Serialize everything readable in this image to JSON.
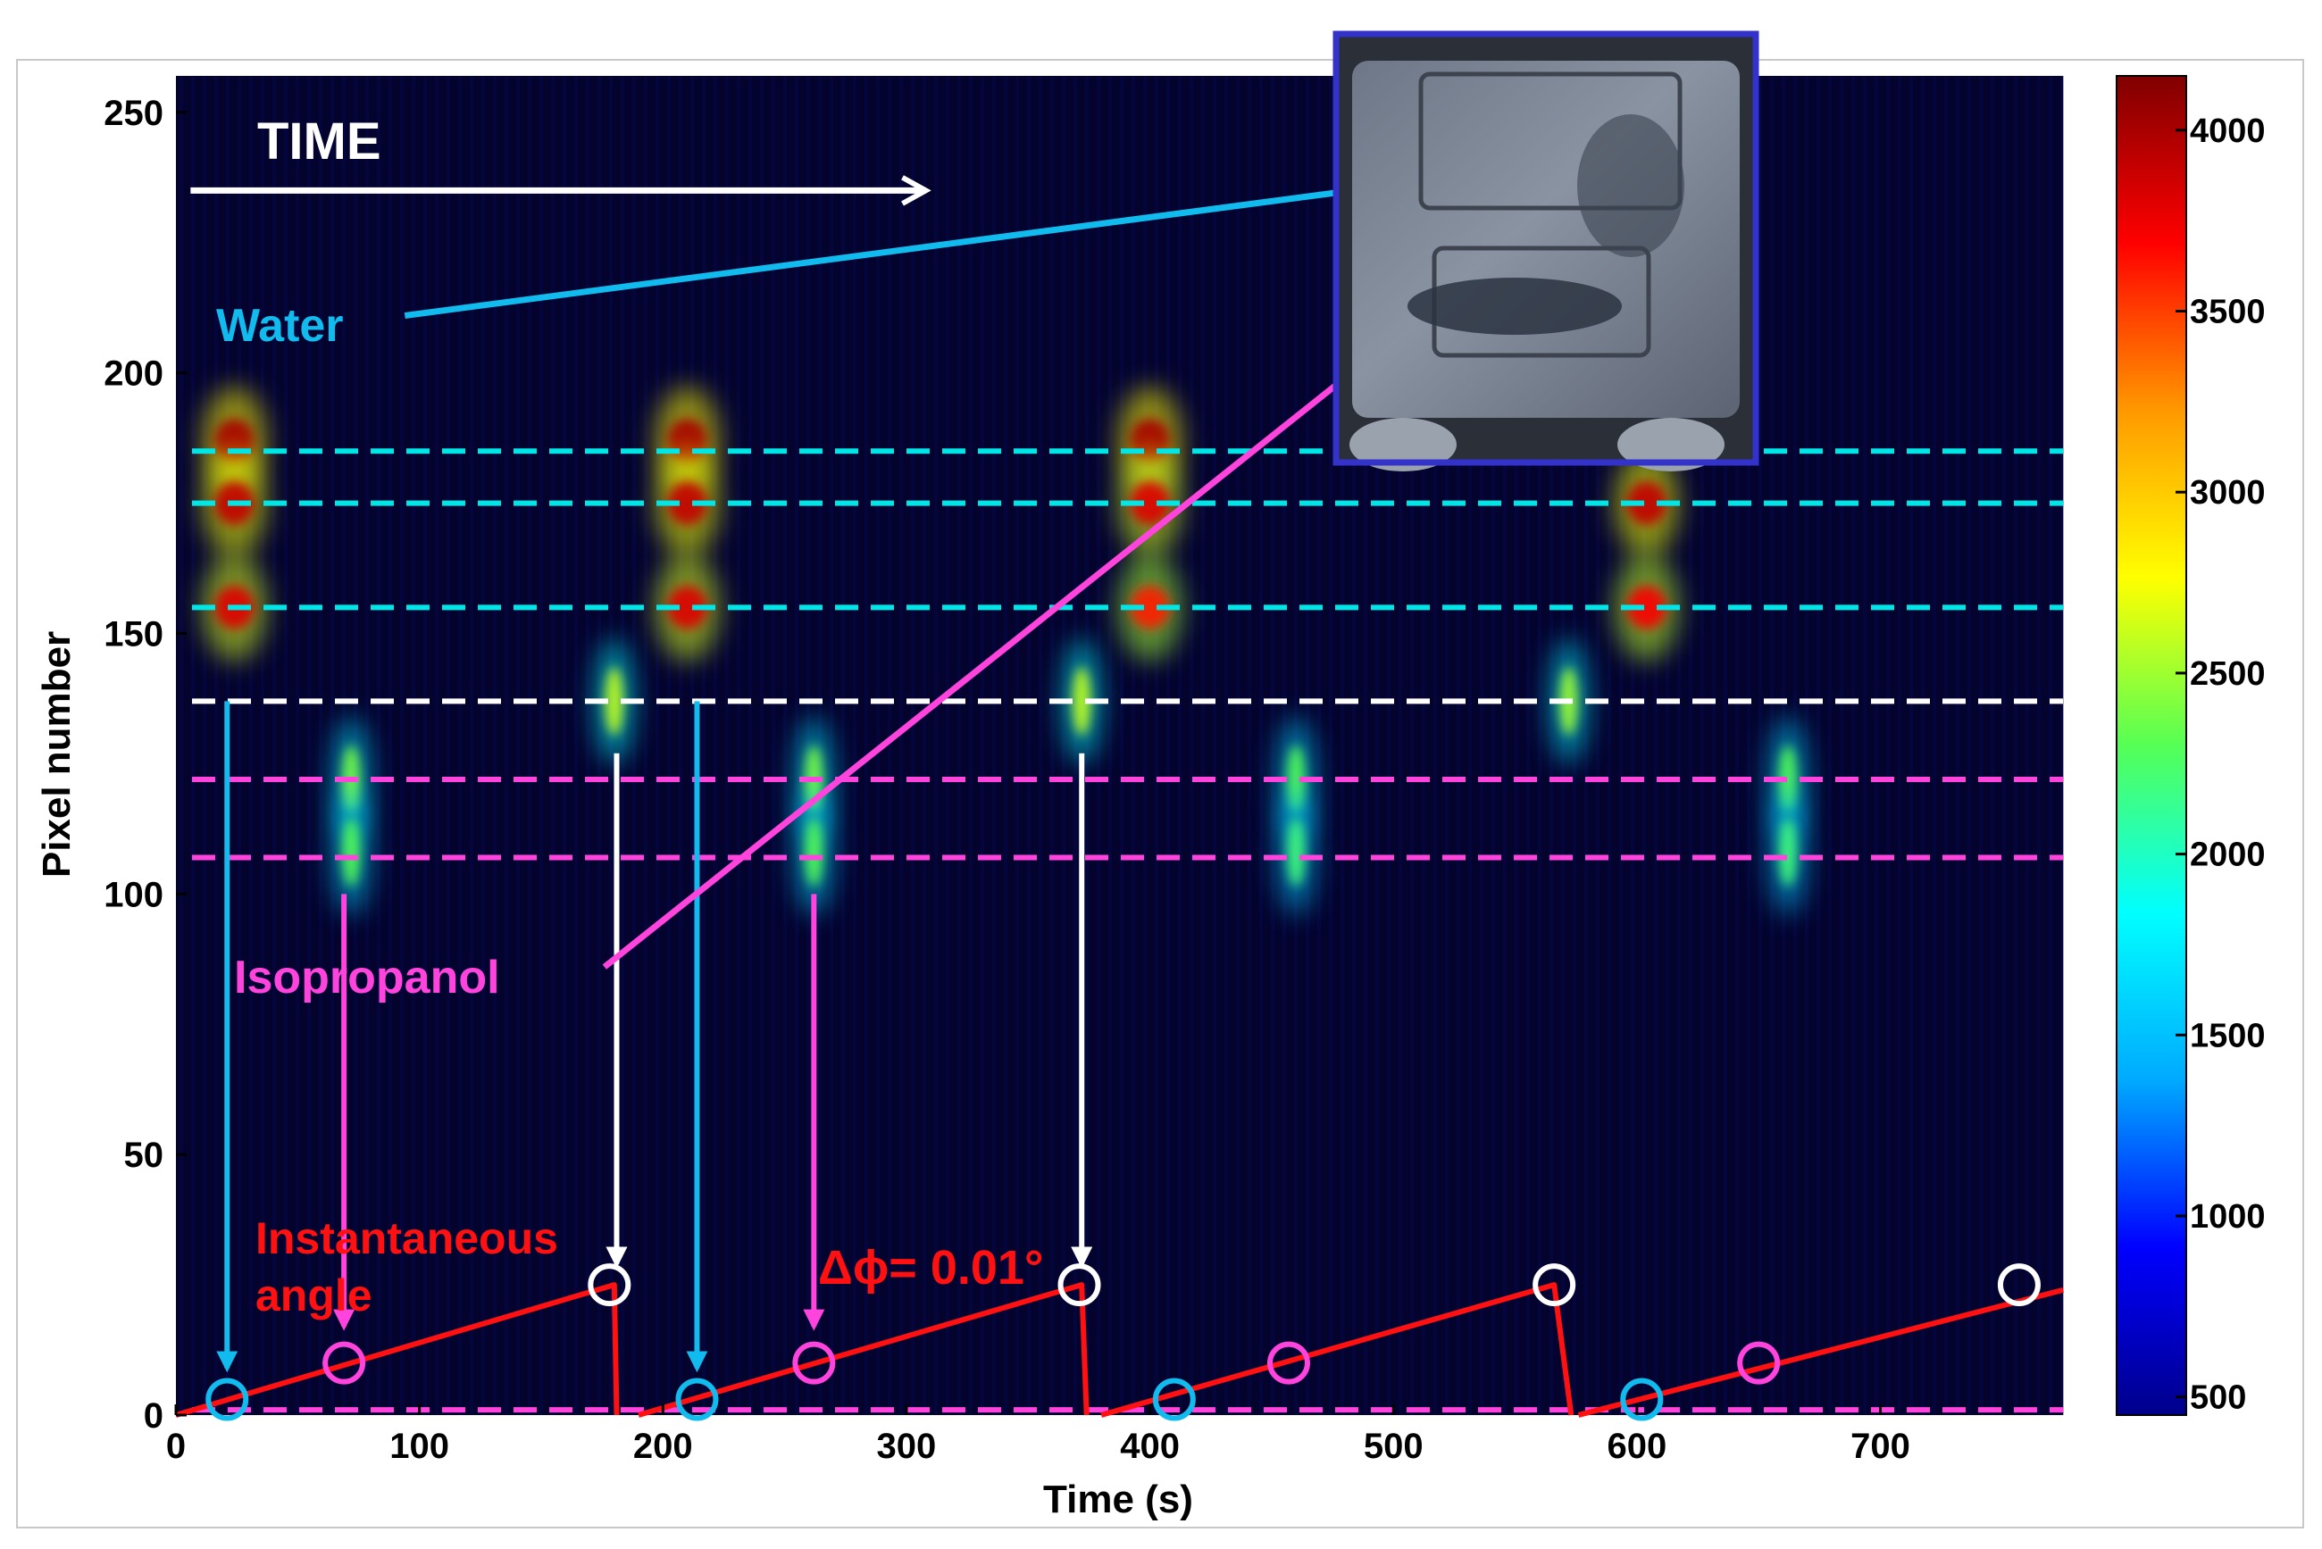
{
  "chart_data": {
    "type": "heatmap",
    "xlabel": "Time (s)",
    "ylabel": "Pixel number",
    "xlim": [
      0,
      775
    ],
    "ylim": [
      0,
      257
    ],
    "x_ticks": [
      0,
      100,
      200,
      300,
      400,
      500,
      600,
      700
    ],
    "y_ticks": [
      0,
      50,
      100,
      150,
      200,
      250
    ],
    "colorbar": {
      "ticks": [
        500,
        1000,
        1500,
        2000,
        2500,
        3000,
        3500,
        4000
      ],
      "range": [
        450,
        4150
      ],
      "colors": [
        "#00008b",
        "#0000ff",
        "#00aaff",
        "#00ffff",
        "#55ff55",
        "#ffff00",
        "#ff9900",
        "#ff0000",
        "#800000"
      ]
    },
    "background_color": "#03032e",
    "reference_lines": [
      {
        "y": 185,
        "color": "#00e5e5"
      },
      {
        "y": 175,
        "color": "#00e5e5"
      },
      {
        "y": 155,
        "color": "#00e5e5"
      },
      {
        "y": 137,
        "color": "#ffffff"
      },
      {
        "y": 122,
        "color": "#ff44dd"
      },
      {
        "y": 107,
        "color": "#ff44dd"
      },
      {
        "y": 1,
        "color": "#ff44dd"
      }
    ],
    "series": [
      {
        "name": "Instantaneous angle",
        "color": "#ff1111",
        "segments": [
          [
            [
              0,
              0
            ],
            [
              180,
              25
            ],
            [
              181,
              0
            ]
          ],
          [
            [
              190,
              0
            ],
            [
              372,
              25
            ],
            [
              374,
              0
            ]
          ],
          [
            [
              380,
              0
            ],
            [
              566,
              25
            ],
            [
              573,
              0
            ]
          ],
          [
            [
              576,
              0
            ],
            [
              775,
              24
            ]
          ]
        ]
      }
    ],
    "circle_markers": [
      {
        "x": 21,
        "y": 3,
        "color": "#11bbee"
      },
      {
        "x": 69,
        "y": 10,
        "color": "#ff44dd"
      },
      {
        "x": 178,
        "y": 25,
        "color": "#ffffff"
      },
      {
        "x": 214,
        "y": 3,
        "color": "#11bbee"
      },
      {
        "x": 262,
        "y": 10,
        "color": "#ff44dd"
      },
      {
        "x": 371,
        "y": 25,
        "color": "#ffffff"
      },
      {
        "x": 410,
        "y": 3,
        "color": "#11bbee"
      },
      {
        "x": 457,
        "y": 10,
        "color": "#ff44dd"
      },
      {
        "x": 566,
        "y": 25,
        "color": "#ffffff"
      },
      {
        "x": 602,
        "y": 3,
        "color": "#11bbee"
      },
      {
        "x": 650,
        "y": 10,
        "color": "#ff44dd"
      },
      {
        "x": 757,
        "y": 25,
        "color": "#ffffff"
      }
    ],
    "intensity_blobs": [
      {
        "x": 24,
        "y": 187,
        "value": 4000
      },
      {
        "x": 24,
        "y": 175,
        "value": 3900
      },
      {
        "x": 24,
        "y": 155,
        "value": 3800
      },
      {
        "x": 210,
        "y": 187,
        "value": 4000
      },
      {
        "x": 210,
        "y": 175,
        "value": 3900
      },
      {
        "x": 210,
        "y": 155,
        "value": 3800
      },
      {
        "x": 400,
        "y": 187,
        "value": 4000
      },
      {
        "x": 400,
        "y": 175,
        "value": 3800
      },
      {
        "x": 400,
        "y": 155,
        "value": 3600
      },
      {
        "x": 604,
        "y": 175,
        "value": 3900
      },
      {
        "x": 604,
        "y": 155,
        "value": 3700
      },
      {
        "x": 180,
        "y": 137,
        "value": 2600
      },
      {
        "x": 372,
        "y": 137,
        "value": 2600
      },
      {
        "x": 572,
        "y": 137,
        "value": 2500
      },
      {
        "x": 72,
        "y": 122,
        "value": 2400
      },
      {
        "x": 72,
        "y": 108,
        "value": 2300
      },
      {
        "x": 262,
        "y": 122,
        "value": 2400
      },
      {
        "x": 262,
        "y": 108,
        "value": 2300
      },
      {
        "x": 460,
        "y": 122,
        "value": 2300
      },
      {
        "x": 460,
        "y": 108,
        "value": 2200
      },
      {
        "x": 662,
        "y": 122,
        "value": 2300
      },
      {
        "x": 662,
        "y": 108,
        "value": 2200
      }
    ],
    "annotations": {
      "time": "TIME",
      "water": "Water",
      "isopropanol": "Isopropanol",
      "angle_line1": "Instantaneous",
      "angle_line2": "angle",
      "delta_phi": "Δϕ= 0.01°"
    }
  }
}
